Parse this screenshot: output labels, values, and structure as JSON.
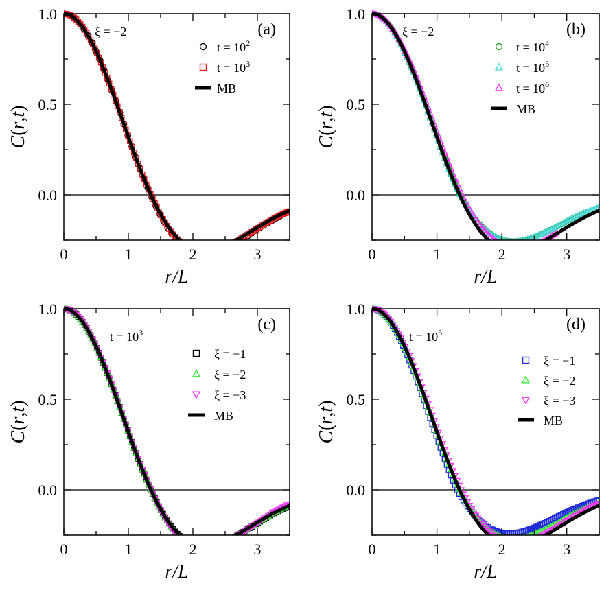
{
  "figure": {
    "x_tick_labels": [
      "0",
      "1",
      "2",
      "3"
    ],
    "y_tick_labels": [
      "0.0",
      "0.5",
      "1.0"
    ]
  },
  "colors": {
    "black": "#000000",
    "red": "#e41a1c",
    "green": "#1e9a1e",
    "cyan": "#4fd8d8",
    "magenta": "#ff33ff",
    "blue": "#1f2bd6",
    "lime": "#33ee33"
  },
  "chart_data": [
    {
      "panel": "(a)",
      "type": "scatter",
      "xlabel": "r/L",
      "ylabel_parts": [
        "C",
        "(",
        "r",
        ",",
        "t",
        ")"
      ],
      "xlim": [
        0,
        3.5
      ],
      "ylim": [
        -0.25,
        1.0
      ],
      "xticks": [
        0,
        1,
        2,
        3
      ],
      "yticks": [
        0.0,
        0.5,
        1.0
      ],
      "param_label": "ξ = −2",
      "series": [
        {
          "name": "t = 10^2",
          "label_base": "t = 10",
          "label_sup": "2",
          "marker": "circle",
          "color": "#000000",
          "curve": {
            "a": 1.035,
            "w": 1.0,
            "off": 0.0
          }
        },
        {
          "name": "t = 10^3",
          "label_base": "t = 10",
          "label_sup": "3",
          "marker": "square",
          "color": "#e41a1c",
          "curve": {
            "a": 1.0,
            "w": 1.0,
            "off": 0.0
          }
        },
        {
          "name": "MB",
          "label_base": "MB",
          "label_sup": "",
          "marker": "line",
          "color": "#000000",
          "curve": {
            "a": 0.97,
            "w": 1.0,
            "off": 0.0
          }
        }
      ]
    },
    {
      "panel": "(b)",
      "type": "scatter",
      "xlabel": "r/L",
      "ylabel_parts": [
        "C",
        "(",
        "r",
        ",",
        "t",
        ")"
      ],
      "xlim": [
        0,
        3.5
      ],
      "ylim": [
        -0.25,
        1.0
      ],
      "xticks": [
        0,
        1,
        2,
        3
      ],
      "yticks": [
        0.0,
        0.5,
        1.0
      ],
      "param_label": "ξ = −2",
      "series": [
        {
          "name": "t = 10^4",
          "label_base": "t = 10",
          "label_sup": "4",
          "marker": "circle",
          "color": "#1e9a1e",
          "curve": {
            "a": 0.8,
            "w": 1.0,
            "off": 0.0
          }
        },
        {
          "name": "t = 10^5",
          "label_base": "t = 10",
          "label_sup": "5",
          "marker": "triangle",
          "color": "#4fd8d8",
          "curve": {
            "a": 0.8,
            "w": 1.0,
            "off": 0.004
          }
        },
        {
          "name": "t = 10^6",
          "label_base": "t = 10",
          "label_sup": "6",
          "marker": "triangle",
          "color": "#ff33ff",
          "xmax": 2.87,
          "curve": {
            "a": 0.93,
            "w": 1.03,
            "off": 0.022
          }
        },
        {
          "name": "MB",
          "label_base": "MB",
          "label_sup": "",
          "marker": "line",
          "color": "#000000",
          "curve": {
            "a": 0.97,
            "w": 1.0,
            "off": 0.0
          }
        }
      ]
    },
    {
      "panel": "(c)",
      "type": "scatter",
      "xlabel": "r/L",
      "ylabel_parts": [
        "C",
        "(",
        "r",
        ",",
        "t",
        ")"
      ],
      "xlim": [
        0,
        3.5
      ],
      "ylim": [
        -0.25,
        1.0
      ],
      "xticks": [
        0,
        1,
        2,
        3
      ],
      "yticks": [
        0.0,
        0.5,
        1.0
      ],
      "param_label_base": "t = 10",
      "param_label_sup": "3",
      "series": [
        {
          "name": "ξ = −1",
          "label_base": "ξ =  −1",
          "label_sup": "",
          "marker": "square",
          "color": "#000000",
          "curve": {
            "a": 0.99,
            "w": 1.0,
            "off": 0.0
          }
        },
        {
          "name": "ξ = −2",
          "label_base": "ξ =  −2",
          "label_sup": "",
          "marker": "triangle",
          "color": "#33ee33",
          "curve": {
            "a": 1.0,
            "w": 1.0,
            "off": 0.005
          }
        },
        {
          "name": "ξ = −3",
          "label_base": "ξ =  −3",
          "label_sup": "",
          "marker": "triangle-down",
          "color": "#ff33ff",
          "curve": {
            "a": 1.03,
            "w": 1.0,
            "off": 0.012
          }
        },
        {
          "name": "MB",
          "label_base": "MB",
          "label_sup": "",
          "marker": "line",
          "color": "#000000",
          "curve": {
            "a": 0.97,
            "w": 1.0,
            "off": 0.0
          }
        }
      ]
    },
    {
      "panel": "(d)",
      "type": "scatter",
      "xlabel": "r/L",
      "ylabel_parts": [
        "C",
        "(",
        "r",
        ",",
        "t",
        ")"
      ],
      "xlim": [
        0,
        3.5
      ],
      "ylim": [
        -0.25,
        1.0
      ],
      "xticks": [
        0,
        1,
        2,
        3
      ],
      "yticks": [
        0.0,
        0.5,
        1.0
      ],
      "param_label_base": "t = 10",
      "param_label_sup": "5",
      "series": [
        {
          "name": "ξ = −1",
          "label_base": "ξ =  −1",
          "label_sup": "",
          "marker": "square",
          "color": "#1f2bd6",
          "curve": {
            "a": 0.75,
            "w": 0.97,
            "off": 0.0
          }
        },
        {
          "name": "ξ = −2",
          "label_base": "ξ =  −2",
          "label_sup": "",
          "marker": "triangle",
          "color": "#33ee33",
          "curve": {
            "a": 0.85,
            "w": 1.0,
            "off": 0.004
          }
        },
        {
          "name": "ξ = −3",
          "label_base": "ξ =  −3",
          "label_sup": "",
          "marker": "triangle-down",
          "color": "#ff33ff",
          "curve": {
            "a": 0.92,
            "w": 1.02,
            "off": 0.015
          }
        },
        {
          "name": "MB",
          "label_base": "MB",
          "label_sup": "",
          "marker": "line",
          "color": "#000000",
          "curve": {
            "a": 0.97,
            "w": 1.0,
            "off": 0.0
          }
        }
      ]
    }
  ]
}
